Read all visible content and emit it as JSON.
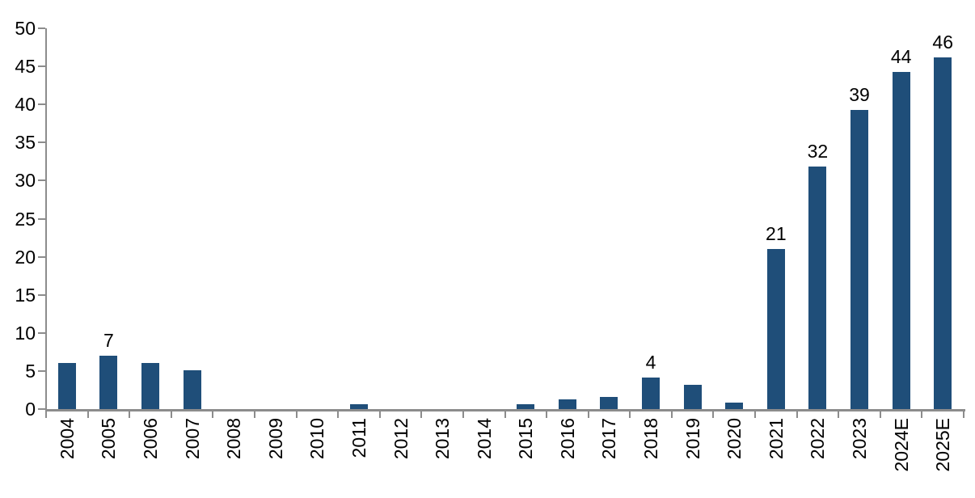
{
  "chart_data": {
    "type": "bar",
    "title": "",
    "xlabel": "",
    "ylabel": "",
    "categories": [
      "2004",
      "2005",
      "2006",
      "2007",
      "2008",
      "2009",
      "2010",
      "2011",
      "2012",
      "2013",
      "2014",
      "2015",
      "2016",
      "2017",
      "2018",
      "2019",
      "2020",
      "2021",
      "2022",
      "2023",
      "2024E",
      "2025E"
    ],
    "values": [
      6,
      7,
      6,
      5.1,
      0,
      0,
      0,
      0.6,
      0,
      0,
      0,
      0.6,
      1.3,
      1.6,
      4.1,
      3.2,
      0.8,
      21,
      31.8,
      39.3,
      44.3,
      46.2
    ],
    "bar_labels": [
      "",
      "7",
      "",
      "",
      "",
      "",
      "",
      "",
      "",
      "",
      "",
      "",
      "",
      "",
      "4",
      "",
      "",
      "21",
      "32",
      "39",
      "44",
      "46"
    ],
    "y_ticks": [
      0,
      5,
      10,
      15,
      20,
      25,
      30,
      35,
      40,
      45,
      50
    ],
    "ylim": [
      0,
      50
    ],
    "grid": false,
    "legend": "none",
    "bar_color": "#1F4E79",
    "axis_color": "#8C8C8C",
    "text_color": "#000000",
    "background_color": "#FFFFFF"
  }
}
